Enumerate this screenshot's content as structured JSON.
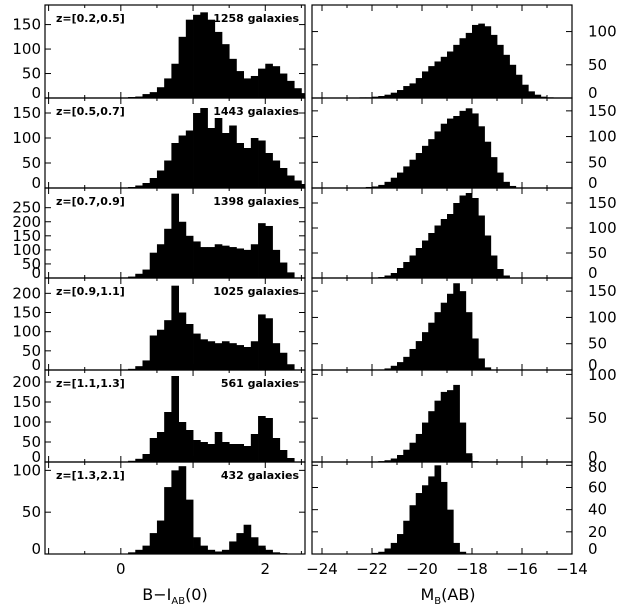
{
  "chart_data": {
    "type": "bar",
    "layout": "6 rows x 2 columns of histograms, rows share redshift bins",
    "left_column": {
      "xlabel": "B−I",
      "xlabel_sub": "AB",
      "xlabel_tail": "(0)",
      "xlim": [
        -1.05,
        2.55
      ],
      "xticks": [
        0,
        2
      ],
      "bin_width": 0.1
    },
    "right_column": {
      "xlabel": "M",
      "xlabel_sub": "B",
      "xlabel_tail": "(AB)",
      "xlim": [
        -24.4,
        -14.0
      ],
      "xticks": [
        -24,
        -22,
        -20,
        -18,
        -16,
        -14
      ],
      "bin_width": 0.25
    },
    "panels": [
      {
        "redshift_label": "z=[0.2,0.5]",
        "count_label": "1258 galaxies",
        "left": {
          "ylim": [
            0,
            190
          ],
          "yticks": [
            0,
            50,
            100,
            150
          ],
          "x_start": -1.0,
          "values": [
            0,
            0,
            0,
            0,
            0,
            0,
            0,
            0,
            0,
            0,
            1,
            2,
            3,
            8,
            12,
            22,
            40,
            70,
            125,
            160,
            170,
            175,
            160,
            135,
            110,
            80,
            55,
            40,
            45,
            60,
            70,
            65,
            50,
            35,
            20,
            10,
            5,
            3,
            2,
            1,
            0,
            0,
            0,
            0,
            0
          ]
        },
        "right": {
          "ylim": [
            0,
            140
          ],
          "yticks": [
            0,
            50,
            100
          ],
          "x_start": -23.5,
          "values": [
            0,
            0,
            0,
            0,
            1,
            1,
            2,
            3,
            5,
            8,
            12,
            18,
            22,
            30,
            40,
            48,
            55,
            62,
            70,
            80,
            90,
            98,
            110,
            112,
            108,
            95,
            80,
            65,
            50,
            35,
            20,
            10,
            5,
            2,
            1
          ]
        }
      },
      {
        "redshift_label": "z=[0.5,0.7]",
        "count_label": "1443 galaxies",
        "left": {
          "ylim": [
            0,
            180
          ],
          "yticks": [
            0,
            50,
            100,
            150
          ],
          "x_start": -1.0,
          "values": [
            0,
            0,
            0,
            0,
            0,
            0,
            0,
            0,
            0,
            0,
            1,
            2,
            5,
            10,
            20,
            35,
            55,
            90,
            105,
            115,
            150,
            160,
            120,
            140,
            110,
            125,
            90,
            80,
            100,
            95,
            70,
            55,
            40,
            25,
            15,
            8,
            4,
            2,
            1,
            0,
            0,
            0,
            0,
            0,
            0
          ]
        },
        "right": {
          "ylim": [
            0,
            175
          ],
          "yticks": [
            0,
            50,
            100,
            150
          ],
          "x_start": -23.5,
          "values": [
            0,
            0,
            0,
            0,
            1,
            2,
            3,
            6,
            12,
            20,
            30,
            42,
            55,
            68,
            82,
            95,
            110,
            125,
            135,
            140,
            150,
            155,
            145,
            120,
            90,
            60,
            30,
            12,
            4,
            1,
            0,
            0,
            0,
            0,
            0
          ]
        }
      },
      {
        "redshift_label": "z=[0.7,0.9]",
        "count_label": "1398 galaxies",
        "left": {
          "ylim": [
            0,
            320
          ],
          "yticks": [
            0,
            50,
            100,
            150,
            200,
            250
          ],
          "x_start": -1.0,
          "values": [
            0,
            0,
            0,
            0,
            0,
            0,
            0,
            0,
            0,
            0,
            2,
            5,
            15,
            30,
            90,
            120,
            175,
            300,
            200,
            150,
            130,
            110,
            110,
            120,
            115,
            110,
            105,
            100,
            120,
            195,
            185,
            100,
            55,
            20,
            0,
            0,
            0,
            0,
            0,
            0,
            0,
            0,
            0,
            0,
            0
          ]
        },
        "right": {
          "ylim": [
            0,
            180
          ],
          "yticks": [
            0,
            50,
            100,
            150
          ],
          "x_start": -23.5,
          "values": [
            0,
            0,
            0,
            0,
            0,
            0,
            1,
            2,
            5,
            10,
            20,
            32,
            45,
            60,
            75,
            90,
            105,
            118,
            128,
            150,
            165,
            170,
            160,
            125,
            85,
            45,
            18,
            5,
            1,
            0,
            0,
            0,
            0,
            0,
            0
          ]
        }
      },
      {
        "redshift_label": "z=[0.9,1.1]",
        "count_label": "1025 galaxies",
        "left": {
          "ylim": [
            0,
            240
          ],
          "yticks": [
            0,
            50,
            100,
            150,
            200
          ],
          "x_start": -1.0,
          "values": [
            0,
            0,
            0,
            0,
            0,
            0,
            0,
            0,
            0,
            0,
            1,
            3,
            10,
            25,
            90,
            105,
            130,
            220,
            150,
            120,
            95,
            80,
            75,
            70,
            75,
            70,
            65,
            60,
            75,
            145,
            135,
            70,
            45,
            15,
            0,
            0,
            0,
            0,
            0,
            0,
            0,
            0,
            0,
            0,
            0
          ]
        },
        "right": {
          "ylim": [
            0,
            175
          ],
          "yticks": [
            0,
            50,
            100,
            150
          ],
          "x_start": -23.5,
          "values": [
            0,
            0,
            0,
            0,
            0,
            0,
            0,
            1,
            3,
            8,
            15,
            25,
            40,
            55,
            72,
            90,
            110,
            128,
            145,
            165,
            150,
            110,
            60,
            22,
            5,
            0,
            0,
            0,
            0,
            0,
            0,
            0,
            0,
            0,
            0
          ]
        }
      },
      {
        "redshift_label": "z=[1.1,1.3]",
        "count_label": "561 galaxies",
        "left": {
          "ylim": [
            0,
            230
          ],
          "yticks": [
            0,
            50,
            100,
            150,
            200
          ],
          "x_start": -1.0,
          "values": [
            0,
            0,
            0,
            0,
            0,
            0,
            0,
            0,
            0,
            0,
            1,
            3,
            8,
            20,
            60,
            75,
            125,
            215,
            100,
            80,
            55,
            50,
            45,
            75,
            50,
            45,
            45,
            40,
            70,
            115,
            110,
            60,
            30,
            10,
            0,
            0,
            0,
            0,
            0,
            0,
            0,
            0,
            0,
            0,
            0
          ]
        },
        "right": {
          "ylim": [
            0,
            105
          ],
          "yticks": [
            0,
            50,
            100
          ],
          "x_start": -23.5,
          "values": [
            0,
            0,
            0,
            0,
            0,
            0,
            0,
            1,
            2,
            4,
            8,
            14,
            22,
            32,
            45,
            58,
            70,
            80,
            82,
            88,
            45,
            10,
            1,
            0,
            0,
            0,
            0,
            0,
            0,
            0,
            0,
            0,
            0,
            0,
            0
          ]
        }
      },
      {
        "redshift_label": "z=[1.3,2.1]",
        "count_label": "432 galaxies",
        "left": {
          "ylim": [
            0,
            110
          ],
          "yticks": [
            0,
            50,
            100
          ],
          "x_start": -1.0,
          "values": [
            0,
            0,
            0,
            0,
            0,
            0,
            0,
            0,
            0,
            0,
            0,
            2,
            5,
            10,
            25,
            40,
            80,
            100,
            105,
            65,
            20,
            10,
            5,
            3,
            5,
            15,
            25,
            35,
            20,
            10,
            5,
            2,
            1,
            0,
            0,
            0,
            0,
            0,
            0,
            0,
            0,
            0,
            0,
            0,
            0
          ]
        },
        "right": {
          "ylim": [
            0,
            83
          ],
          "yticks": [
            0,
            20,
            40,
            60,
            80
          ],
          "x_start": -23.5,
          "values": [
            0,
            0,
            0,
            0,
            0,
            0,
            1,
            2,
            5,
            10,
            18,
            30,
            44,
            55,
            62,
            70,
            80,
            65,
            40,
            10,
            2,
            0,
            0,
            0,
            0,
            0,
            0,
            0,
            0,
            0,
            0,
            0,
            0,
            0,
            0
          ]
        }
      }
    ]
  }
}
